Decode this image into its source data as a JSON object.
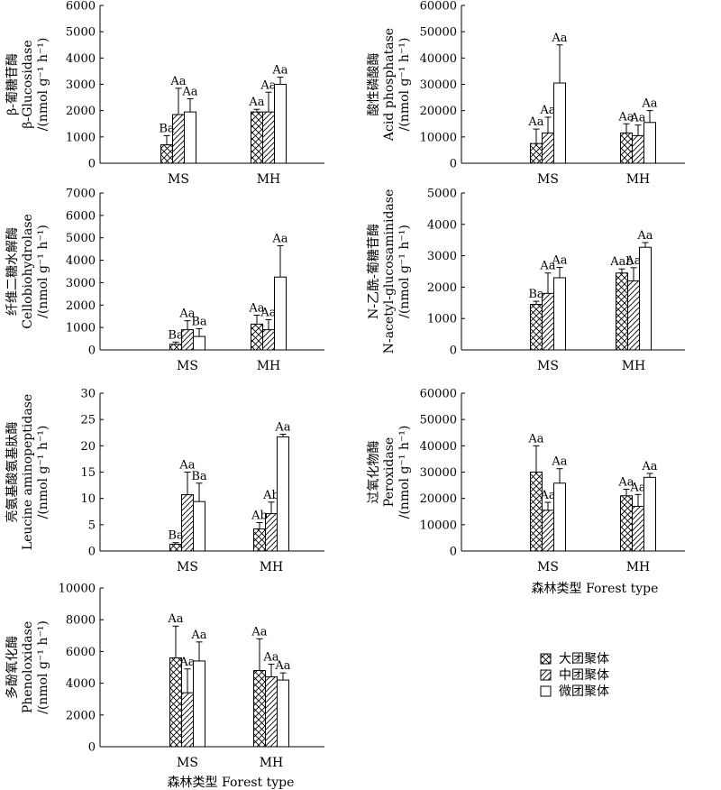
{
  "x_axis_title": "森林类型  Forest type",
  "legend": [
    {
      "label": "大团聚体",
      "pattern": "cross"
    },
    {
      "label": "中团聚体",
      "pattern": "diag"
    },
    {
      "label": "微团聚体",
      "pattern": "blank"
    }
  ],
  "chart_data": [
    {
      "type": "bar",
      "name": "glucosidase",
      "ylabel_lines": [
        "β-葡糖苷酶",
        "β-Glucosidase",
        "/(nmol g⁻¹ h⁻¹)"
      ],
      "ylim": [
        0,
        6000
      ],
      "yticks": [
        0,
        1000,
        2000,
        3000,
        4000,
        5000,
        6000
      ],
      "categories": [
        "MS",
        "MH"
      ],
      "series": [
        {
          "name": "大团聚体",
          "values": [
            700,
            1950
          ],
          "errors": [
            350,
            100
          ],
          "labels": [
            "Ba",
            "Aa"
          ]
        },
        {
          "name": "中团聚体",
          "values": [
            1850,
            1950
          ],
          "errors": [
            1000,
            750
          ],
          "labels": [
            "Aa",
            "Aa"
          ]
        },
        {
          "name": "微团聚体",
          "values": [
            1950,
            3000
          ],
          "errors": [
            500,
            270
          ],
          "labels": [
            "Aa",
            "Aa"
          ]
        }
      ]
    },
    {
      "type": "bar",
      "name": "phosphatase",
      "ylabel_lines": [
        "酸性磷酸酶",
        "Acid phosphatase",
        "/(nmol g⁻¹ h⁻¹)"
      ],
      "ylim": [
        0,
        60000
      ],
      "yticks": [
        0,
        10000,
        20000,
        30000,
        40000,
        50000,
        60000
      ],
      "categories": [
        "MS",
        "MH"
      ],
      "series": [
        {
          "name": "大团聚体",
          "values": [
            7500,
            11500
          ],
          "errors": [
            5500,
            3500
          ],
          "labels": [
            "Aa",
            "Aa"
          ]
        },
        {
          "name": "中团聚体",
          "values": [
            11500,
            10500
          ],
          "errors": [
            6000,
            4000
          ],
          "labels": [
            "Aa",
            "Aa"
          ]
        },
        {
          "name": "微团聚体",
          "values": [
            30500,
            15500
          ],
          "errors": [
            14500,
            4500
          ],
          "labels": [
            "Aa",
            "Aa"
          ]
        }
      ]
    },
    {
      "type": "bar",
      "name": "cellobiohydrolase",
      "ylabel_lines": [
        "纤维二糖水解酶",
        "Cellobiohydrolase",
        "/(nmol g⁻¹ h⁻¹)"
      ],
      "ylim": [
        0,
        7000
      ],
      "yticks": [
        0,
        1000,
        2000,
        3000,
        4000,
        5000,
        6000,
        7000
      ],
      "categories": [
        "MS",
        "MH"
      ],
      "series": [
        {
          "name": "大团聚体",
          "values": [
            250,
            1150
          ],
          "errors": [
            100,
            400
          ],
          "labels": [
            "Ba",
            "Aa"
          ]
        },
        {
          "name": "中团聚体",
          "values": [
            900,
            900
          ],
          "errors": [
            400,
            450
          ],
          "labels": [
            "Aa",
            "Aa"
          ]
        },
        {
          "name": "微团聚体",
          "values": [
            600,
            3250
          ],
          "errors": [
            350,
            1400
          ],
          "labels": [
            "Ba",
            "Aa"
          ]
        }
      ]
    },
    {
      "type": "bar",
      "name": "nag",
      "ylabel_lines": [
        "N-乙酰-葡糖苷酶",
        "N-acetyl-glucosaminidase",
        "/(nmol g⁻¹ h⁻¹)"
      ],
      "ylim": [
        0,
        5000
      ],
      "yticks": [
        0,
        1000,
        2000,
        3000,
        4000,
        5000
      ],
      "categories": [
        "MS",
        "MH"
      ],
      "series": [
        {
          "name": "大团聚体",
          "values": [
            1450,
            2450
          ],
          "errors": [
            100,
            130
          ],
          "labels": [
            "Ba",
            "Aab"
          ]
        },
        {
          "name": "中团聚体",
          "values": [
            1800,
            2200
          ],
          "errors": [
            650,
            420
          ],
          "labels": [
            "Aa",
            "Aa"
          ]
        },
        {
          "name": "微团聚体",
          "values": [
            2300,
            3270
          ],
          "errors": [
            330,
            150
          ],
          "labels": [
            "Aa",
            "Aa"
          ]
        }
      ]
    },
    {
      "type": "bar",
      "name": "lap",
      "ylabel_lines": [
        "亮氨基酸氨基肽酶",
        "Leucine aminopeptidase",
        "/(nmol g⁻¹ h⁻¹)"
      ],
      "ylim": [
        0,
        30
      ],
      "yticks": [
        0,
        5,
        10,
        15,
        20,
        25,
        30
      ],
      "categories": [
        "MS",
        "MH"
      ],
      "series": [
        {
          "name": "大团聚体",
          "values": [
            1.3,
            4.2
          ],
          "errors": [
            0.3,
            1.2
          ],
          "labels": [
            "Ba",
            "Ab"
          ]
        },
        {
          "name": "中团聚体",
          "values": [
            10.7,
            7.1
          ],
          "errors": [
            4.3,
            2.2
          ],
          "labels": [
            "Aa",
            "Ab"
          ]
        },
        {
          "name": "微团聚体",
          "values": [
            9.4,
            21.7
          ],
          "errors": [
            3.5,
            0.5
          ],
          "labels": [
            "Ba",
            "Aa"
          ]
        }
      ]
    },
    {
      "type": "bar",
      "name": "peroxidase",
      "ylabel_lines": [
        "过氧化物酶",
        "Peroxidase",
        "/(nmol g⁻¹ h⁻¹)"
      ],
      "ylim": [
        0,
        60000
      ],
      "yticks": [
        0,
        10000,
        20000,
        30000,
        40000,
        50000,
        60000
      ],
      "categories": [
        "MS",
        "MH"
      ],
      "series": [
        {
          "name": "大团聚体",
          "values": [
            30000,
            21000
          ],
          "errors": [
            10000,
            2500
          ],
          "labels": [
            "Aa",
            "Aa"
          ]
        },
        {
          "name": "中团聚体",
          "values": [
            15500,
            17000
          ],
          "errors": [
            3000,
            4500
          ],
          "labels": [
            "Aa",
            "Aa"
          ]
        },
        {
          "name": "微团聚体",
          "values": [
            25800,
            28000
          ],
          "errors": [
            5500,
            1500
          ],
          "labels": [
            "Aa",
            "Aa"
          ]
        }
      ]
    },
    {
      "type": "bar",
      "name": "phenoloxidase",
      "ylabel_lines": [
        "多酚氧化酶",
        "Phenoloxidase",
        "/(nmol g⁻¹ h⁻¹)"
      ],
      "ylim": [
        0,
        10000
      ],
      "yticks": [
        0,
        2000,
        4000,
        6000,
        8000,
        10000
      ],
      "categories": [
        "MS",
        "MH"
      ],
      "series": [
        {
          "name": "大团聚体",
          "values": [
            5600,
            4800
          ],
          "errors": [
            2000,
            2000
          ],
          "labels": [
            "Aa",
            "Aa"
          ]
        },
        {
          "name": "中团聚体",
          "values": [
            3400,
            4400
          ],
          "errors": [
            1500,
            800
          ],
          "labels": [
            "Aa",
            "Aa"
          ]
        },
        {
          "name": "微团聚体",
          "values": [
            5400,
            4200
          ],
          "errors": [
            1200,
            450
          ],
          "labels": [
            "Aa",
            "Aa"
          ]
        }
      ]
    }
  ]
}
